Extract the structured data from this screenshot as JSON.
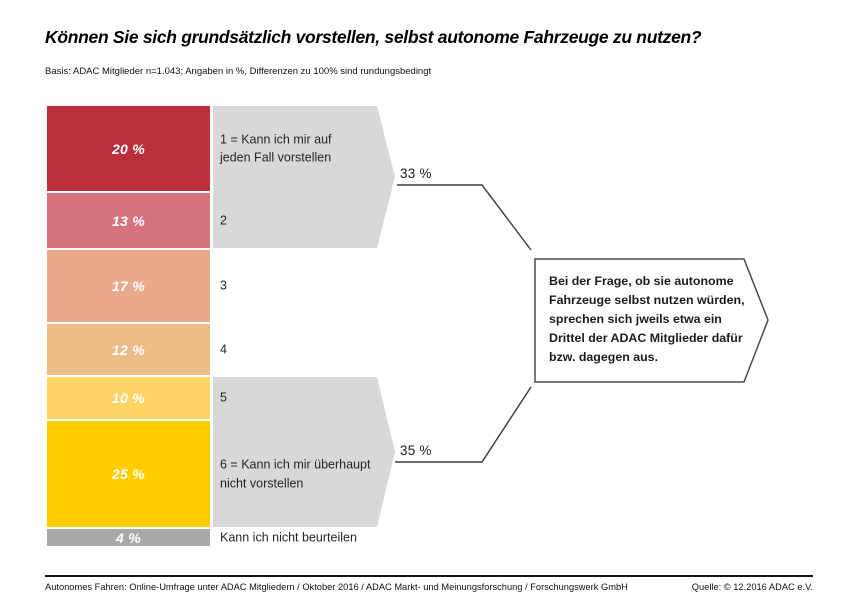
{
  "header": {
    "title": "Können Sie sich grundsätzlich vorstellen, selbst autonome Fahrzeuge zu nutzen?",
    "subtitle": "Basis: ADAC Mitglieder n=1.043; Angaben in %, Differenzen zu 100% sind rundungsbedingt"
  },
  "chart_data": {
    "type": "bar",
    "orientation": "horizontal-stacked-scale",
    "unit": "%",
    "title": "Können Sie sich grundsätzlich vorstellen, selbst autonome Fahrzeuge zu nutzen?",
    "categories": [
      "1 = Kann ich mir auf\njeden Fall vorstellen",
      "2",
      "3",
      "4",
      "5",
      "6 = Kann ich mir überhaupt\nnicht vorstellen",
      "Kann ich nicht beurteilen"
    ],
    "values": [
      20,
      13,
      17,
      12,
      10,
      25,
      4
    ],
    "value_labels": [
      "20 %",
      "13 %",
      "17 %",
      "12 %",
      "10 %",
      "25 %",
      "4 %"
    ],
    "colors": [
      "#BA2E3D",
      "#D5737F",
      "#EAA98C",
      "#EBBC85",
      "#FFD466",
      "#FFCC00",
      "#A9A9A9"
    ],
    "groups": [
      {
        "label": "33 %",
        "covers_categories": [
          "1",
          "2"
        ]
      },
      {
        "label": "35 %",
        "covers_categories": [
          "5",
          "6"
        ]
      }
    ],
    "group_arrow_color": "#D8D8D8",
    "legend": "none",
    "grid": "off"
  },
  "callout": {
    "text": "Bei der Frage, ob sie autonome\nFahrzeuge selbst nutzen würden,\nsprechen sich jweils etwa ein\nDrittel der ADAC Mitglieder dafür\nbzw. dagegen aus."
  },
  "footer": {
    "left": "Autonomes Fahren: Online-Umfrage unter ADAC Mitgliedern / Oktober 2016 / ADAC Markt- und Meinungsforschung / Forschungswerk GmbH",
    "right": "Quelle: © 12.2016 ADAC e.V."
  }
}
